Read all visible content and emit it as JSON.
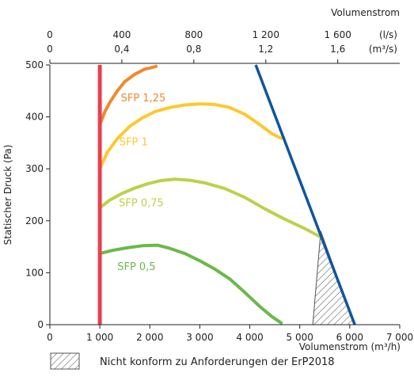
{
  "chart_data": {
    "type": "line",
    "top_axis_title": "Volumenstrom",
    "top_ticks_ls": [
      "0",
      "400",
      "800",
      "1 200",
      "1 600"
    ],
    "top_unit_ls": "(l/s)",
    "top_ticks_m3s": [
      "0",
      "0,4",
      "0,8",
      "1,2",
      "1,6"
    ],
    "top_unit_m3s": "(m³/s)",
    "xlabel": "Volumenstrom (m³/h)",
    "ylabel": "Statischer Druck (Pa)",
    "xlim": [
      0,
      7000
    ],
    "ylim": [
      0,
      500
    ],
    "xticks": [
      0,
      1000,
      2000,
      3000,
      4000,
      5000,
      6000,
      7000
    ],
    "xtick_labels": [
      "0",
      "1 000",
      "2 000",
      "3 000",
      "4 000",
      "5 000",
      "6 000",
      "7 000"
    ],
    "yticks": [
      0,
      100,
      200,
      300,
      400,
      500
    ],
    "series": [
      {
        "name": "SFP 1,25",
        "color": "#ef8a2c",
        "x": [
          1000,
          1100,
          1200,
          1350,
          1500,
          1700,
          1900,
          2000,
          2150
        ],
        "y": [
          385,
          410,
          428,
          450,
          468,
          482,
          492,
          494,
          498
        ],
        "label_at": [
          1420,
          430
        ]
      },
      {
        "name": "SFP 1",
        "color": "#fdc82f",
        "x": [
          1000,
          1150,
          1350,
          1600,
          1850,
          2100,
          2400,
          2700,
          3000,
          3300,
          3600,
          3900,
          4200,
          4450,
          4650
        ],
        "y": [
          300,
          332,
          358,
          382,
          398,
          410,
          418,
          423,
          425,
          424,
          418,
          405,
          385,
          367,
          358
        ],
        "label_at": [
          1390,
          345
        ]
      },
      {
        "name": "SFP 0,75",
        "color": "#bdd14a",
        "x": [
          1000,
          1200,
          1450,
          1700,
          1950,
          2200,
          2500,
          2800,
          3100,
          3500,
          3900,
          4300,
          4700,
          5100,
          5450
        ],
        "y": [
          225,
          240,
          253,
          263,
          271,
          277,
          280,
          278,
          273,
          262,
          245,
          223,
          203,
          185,
          167
        ],
        "label_at": [
          1380,
          228
        ]
      },
      {
        "name": "SFP 0,5",
        "color": "#6ab94a",
        "x": [
          1000,
          1250,
          1550,
          1850,
          2150,
          2400,
          2700,
          3000,
          3300,
          3600,
          3900,
          4200,
          4450,
          4650
        ],
        "y": [
          137,
          143,
          148,
          152,
          153,
          147,
          137,
          123,
          107,
          88,
          62,
          35,
          15,
          2
        ],
        "label_at": [
          1350,
          105
        ]
      },
      {
        "name": "",
        "color": "#e8414e",
        "x": [
          1000,
          1000
        ],
        "y": [
          0,
          500
        ]
      },
      {
        "name": "",
        "color": "#11559c",
        "x": [
          4120,
          6100
        ],
        "y": [
          500,
          0
        ]
      }
    ],
    "hatched_region": {
      "x": [
        5260,
        5420,
        6100,
        5260
      ],
      "y": [
        0,
        180,
        0,
        0
      ]
    },
    "legend": [
      {
        "symbol": "hatched-box",
        "label": "Nicht konform zu Anforderungen der ErP2018"
      }
    ]
  }
}
